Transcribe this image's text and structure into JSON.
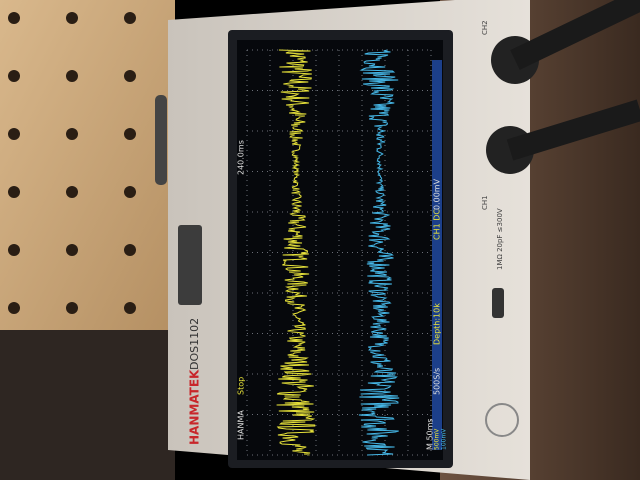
{
  "screen": {
    "brand": "HANMA",
    "status": "Stop",
    "timebase": "240.0ms",
    "trigger": "CH1 DC",
    "trigger_level": "0.00mV",
    "depth": "Depth:10k",
    "sample_rate": "500S/s",
    "time_scale": "M 50ms",
    "ch1_scale": "500mV",
    "ch2_scale": "100mV"
  },
  "body": {
    "brand": "HANMATEK",
    "model": "DOS1102",
    "ch1": "CH1",
    "ch2": "CH2",
    "input_spec": "1MΩ 20pF ≤300V"
  }
}
